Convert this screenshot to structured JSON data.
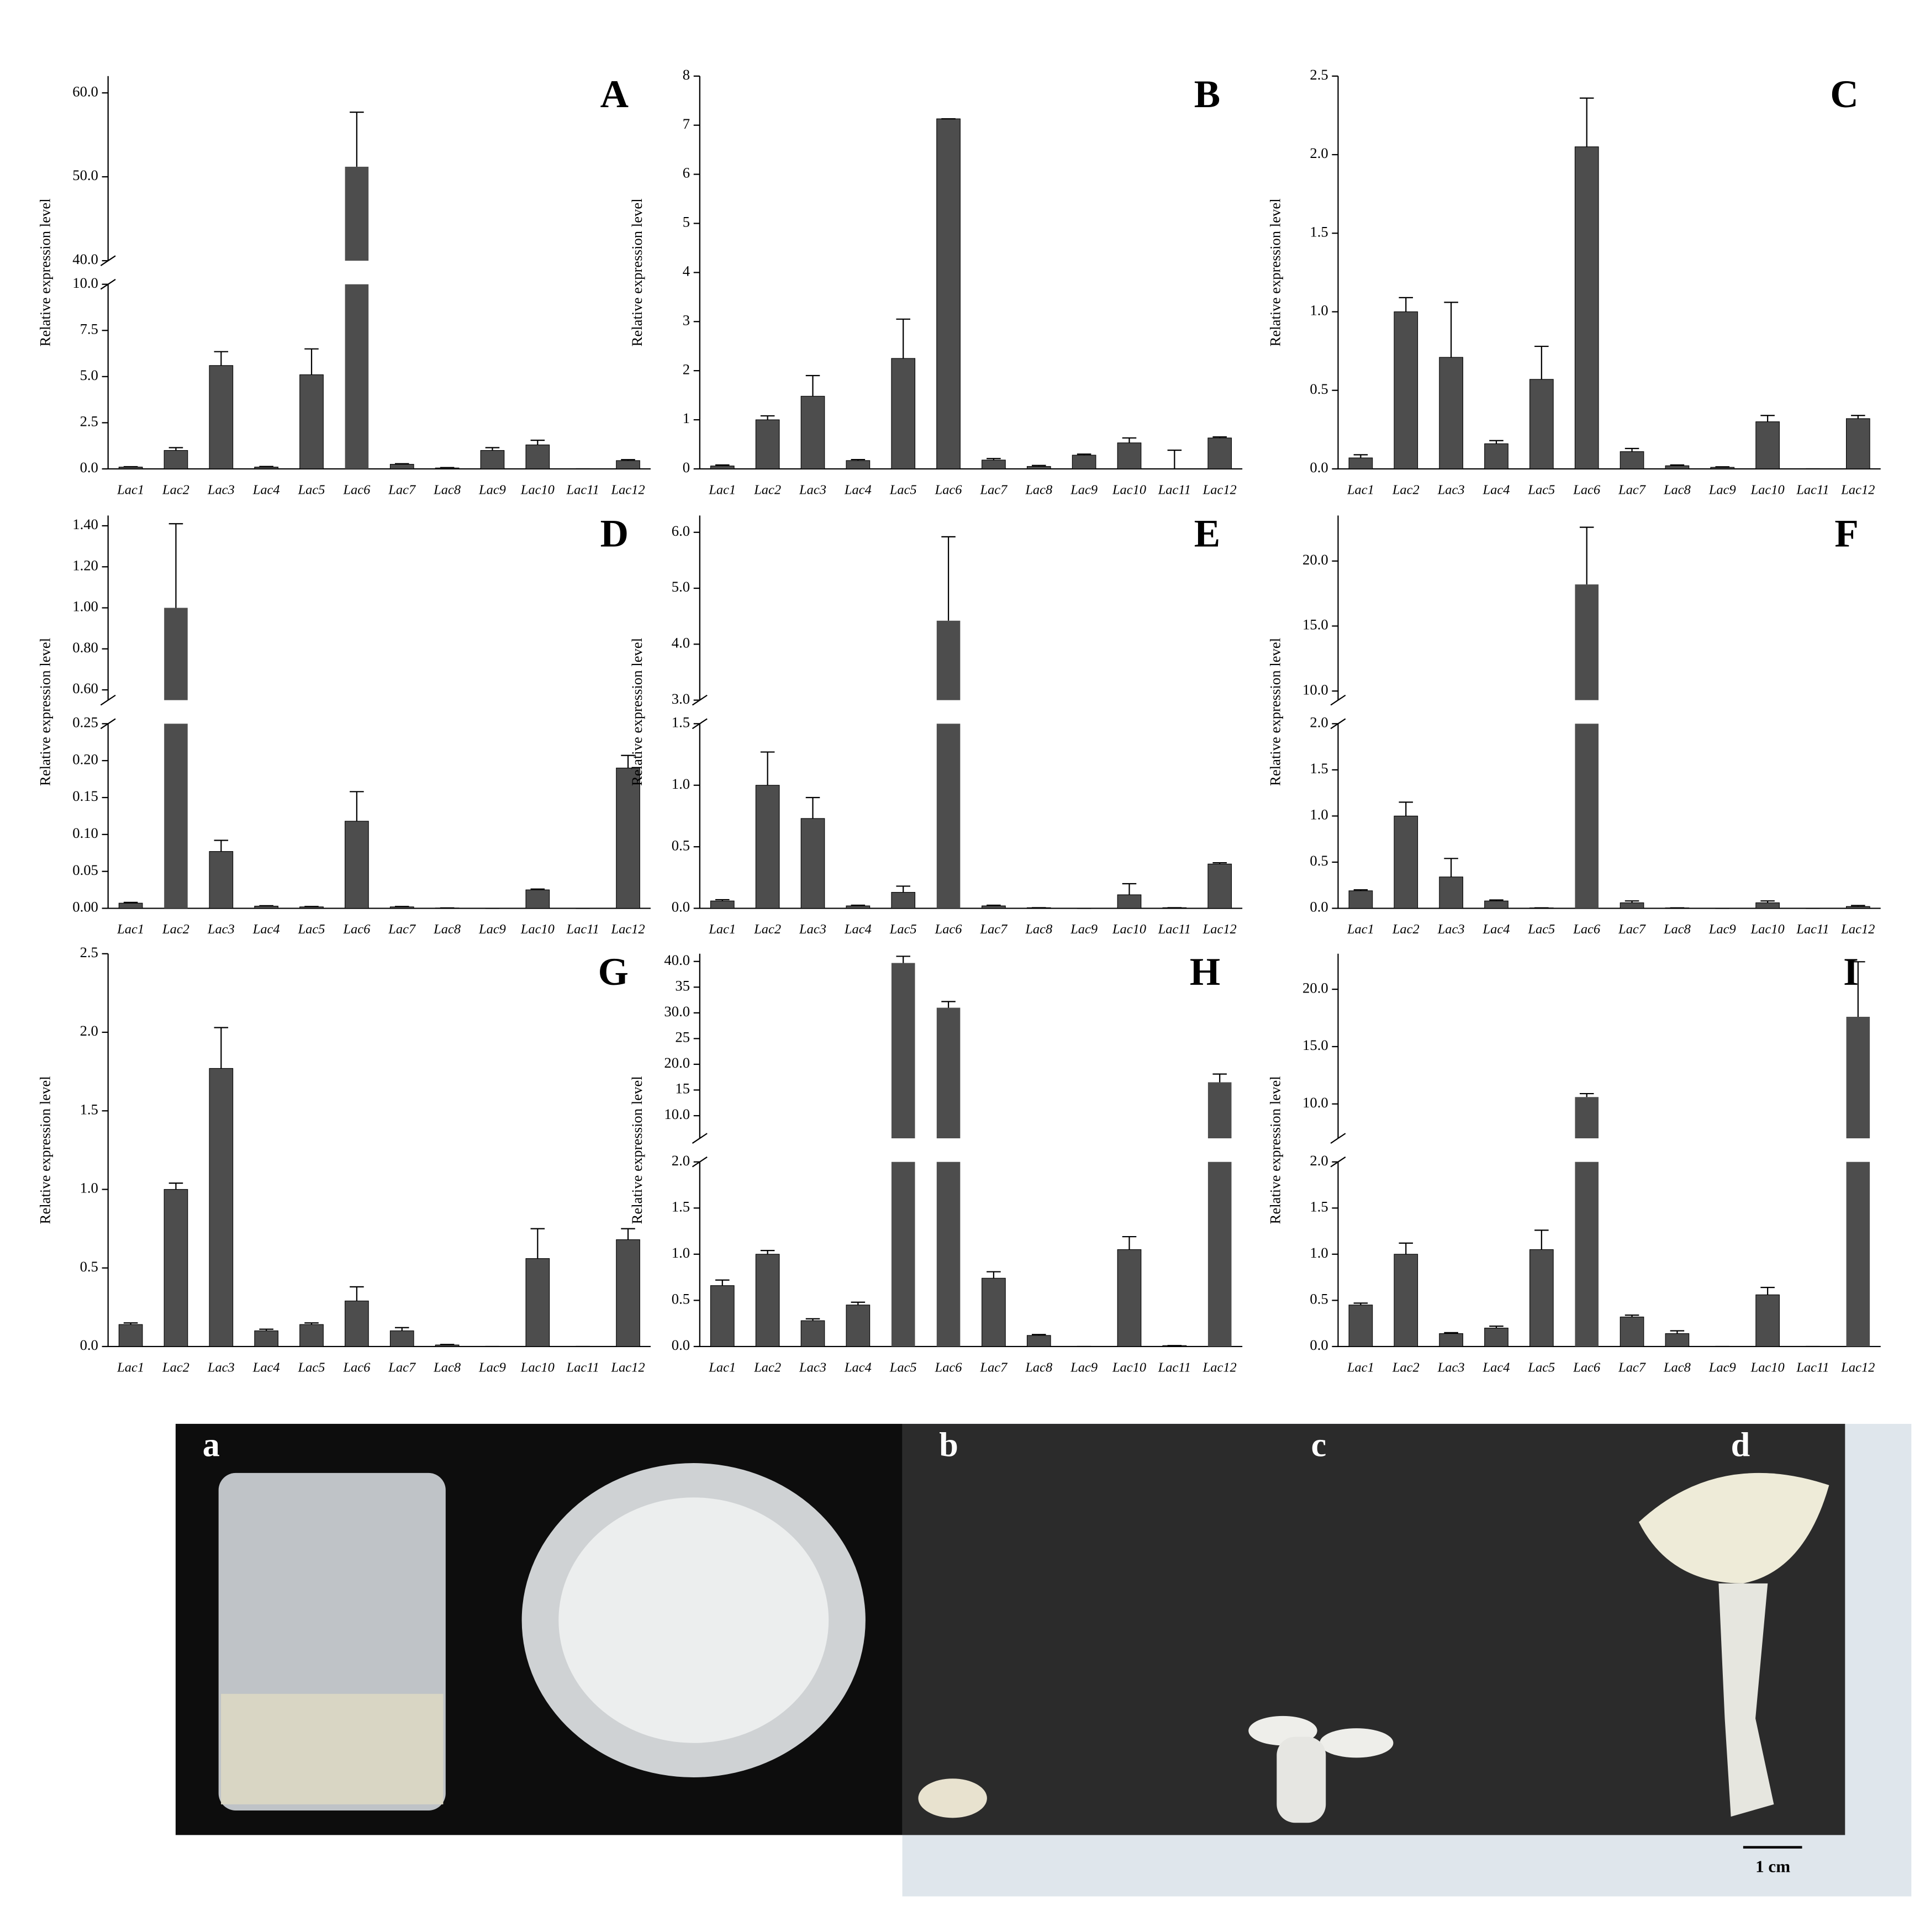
{
  "chart_data": [
    {
      "type": "bar",
      "panel": "A",
      "y_label": "Relative expression level",
      "color": "#4d4d4d",
      "categories": [
        "Lac1",
        "Lac2",
        "Lac3",
        "Lac4",
        "Lac5",
        "Lac6",
        "Lac7",
        "Lac8",
        "Lac9",
        "Lac10",
        "Lac11",
        "Lac12"
      ],
      "values": [
        0.1,
        1.0,
        5.6,
        0.1,
        5.1,
        51.2,
        0.25,
        0.05,
        1.0,
        1.3,
        0,
        0.45
      ],
      "errors": [
        0.02,
        0.15,
        0.75,
        0.03,
        1.4,
        6.5,
        0.03,
        0.02,
        0.15,
        0.25,
        0,
        0.05
      ],
      "ylim": [
        0,
        62
      ],
      "y_break": [
        10,
        40
      ],
      "yticks": [
        {
          "value": 0,
          "label": "0.0"
        },
        2.5,
        {
          "value": 5,
          "label": "5.0"
        },
        7.5,
        {
          "value": 10,
          "label": "10.0"
        },
        {
          "value": 40,
          "label": "40.0"
        },
        {
          "value": 50,
          "label": "50.0"
        },
        {
          "value": 60,
          "label": "60.0"
        }
      ]
    },
    {
      "type": "bar",
      "panel": "B",
      "y_label": "Relative expression level",
      "color": "#4d4d4d",
      "categories": [
        "Lac1",
        "Lac2",
        "Lac3",
        "Lac4",
        "Lac5",
        "Lac6",
        "Lac7",
        "Lac8",
        "Lac9",
        "Lac10",
        "Lac11",
        "Lac12"
      ],
      "values": [
        0.06,
        1.0,
        1.48,
        0.17,
        2.25,
        7.13,
        0.18,
        0.05,
        0.28,
        0.53,
        0,
        0.63
      ],
      "errors": [
        0.02,
        0.08,
        0.42,
        0.02,
        0.8,
        0,
        0.03,
        0.02,
        0.02,
        0.1,
        0.38,
        0.02
      ],
      "ylim": [
        0,
        8
      ],
      "yticks": [
        0,
        1,
        2,
        3,
        4,
        5,
        6,
        7,
        8
      ]
    },
    {
      "type": "bar",
      "panel": "C",
      "y_label": "Relative expression level",
      "color": "#4d4d4d",
      "categories": [
        "Lac1",
        "Lac2",
        "Lac3",
        "Lac4",
        "Lac5",
        "Lac6",
        "Lac7",
        "Lac8",
        "Lac9",
        "Lac10",
        "Lac11",
        "Lac12"
      ],
      "values": [
        0.07,
        1.0,
        0.71,
        0.16,
        0.57,
        2.05,
        0.11,
        0.02,
        0.01,
        0.3,
        0,
        0.32
      ],
      "errors": [
        0.02,
        0.09,
        0.35,
        0.02,
        0.21,
        0.31,
        0.02,
        0.005,
        0.003,
        0.04,
        0,
        0.02
      ],
      "ylim": [
        0,
        2.5
      ],
      "yticks": [
        {
          "value": 0,
          "label": "0.0"
        },
        0.5,
        {
          "value": 1,
          "label": "1.0"
        },
        1.5,
        {
          "value": 2,
          "label": "2.0"
        },
        2.5
      ]
    },
    {
      "type": "bar",
      "panel": "D",
      "y_label": "Relative expression level",
      "color": "#4d4d4d",
      "categories": [
        "Lac1",
        "Lac2",
        "Lac3",
        "Lac4",
        "Lac5",
        "Lac6",
        "Lac7",
        "Lac8",
        "Lac9",
        "Lac10",
        "Lac11",
        "Lac12"
      ],
      "values": [
        0.007,
        1.0,
        0.077,
        0.003,
        0.002,
        0.118,
        0.002,
        0.0005,
        0,
        0.025,
        0,
        0.19
      ],
      "errors": [
        0.001,
        0.41,
        0.015,
        0.0005,
        0.0005,
        0.04,
        0.0005,
        0,
        0,
        0.001,
        0,
        0.017
      ],
      "ylim": [
        0,
        1.45
      ],
      "y_break": [
        0.25,
        0.55
      ],
      "yticks": [
        {
          "value": 0,
          "label": "0.00"
        },
        0.05,
        {
          "value": 0.1,
          "label": "0.10"
        },
        0.15,
        {
          "value": 0.2,
          "label": "0.20"
        },
        0.25,
        {
          "value": 0.6,
          "label": "0.60"
        },
        {
          "value": 0.8,
          "label": "0.80"
        },
        {
          "value": 1,
          "label": "1.00"
        },
        {
          "value": 1.2,
          "label": "1.20"
        },
        {
          "value": 1.4,
          "label": "1.40"
        }
      ]
    },
    {
      "type": "bar",
      "panel": "E",
      "y_label": "Relative expression level",
      "color": "#4d4d4d",
      "categories": [
        "Lac1",
        "Lac2",
        "Lac3",
        "Lac4",
        "Lac5",
        "Lac6",
        "Lac7",
        "Lac8",
        "Lac9",
        "Lac10",
        "Lac11",
        "Lac12"
      ],
      "values": [
        0.06,
        1.0,
        0.73,
        0.02,
        0.13,
        4.42,
        0.02,
        0.005,
        0,
        0.11,
        0.005,
        0.36
      ],
      "errors": [
        0.01,
        0.27,
        0.17,
        0.005,
        0.05,
        1.5,
        0.005,
        0,
        0,
        0.09,
        0,
        0.01
      ],
      "ylim": [
        0,
        6.3
      ],
      "y_break": [
        1.5,
        3.0
      ],
      "yticks": [
        {
          "value": 0,
          "label": "0.0"
        },
        0.5,
        {
          "value": 1,
          "label": "1.0"
        },
        1.5,
        {
          "value": 3,
          "label": "3.0"
        },
        {
          "value": 4,
          "label": "4.0"
        },
        {
          "value": 5,
          "label": "5.0"
        },
        {
          "value": 6,
          "label": "6.0"
        }
      ]
    },
    {
      "type": "bar",
      "panel": "F",
      "y_label": "Relative expression level",
      "color": "#4d4d4d",
      "categories": [
        "Lac1",
        "Lac2",
        "Lac3",
        "Lac4",
        "Lac5",
        "Lac6",
        "Lac7",
        "Lac8",
        "Lac9",
        "Lac10",
        "Lac11",
        "Lac12"
      ],
      "values": [
        0.19,
        1.0,
        0.34,
        0.08,
        0.005,
        18.2,
        0.06,
        0.005,
        0,
        0.06,
        0,
        0.02
      ],
      "errors": [
        0.01,
        0.15,
        0.2,
        0.01,
        0,
        4.4,
        0.02,
        0,
        0,
        0.02,
        0,
        0.01
      ],
      "ylim": [
        0,
        23.5
      ],
      "y_break": [
        2.0,
        9.3
      ],
      "yticks": [
        {
          "value": 0,
          "label": "0.0"
        },
        0.5,
        {
          "value": 1,
          "label": "1.0"
        },
        1.5,
        {
          "value": 2,
          "label": "2.0"
        },
        {
          "value": 10,
          "label": "10.0"
        },
        {
          "value": 15,
          "label": "15.0"
        },
        {
          "value": 20,
          "label": "20.0"
        }
      ]
    },
    {
      "type": "bar",
      "panel": "G",
      "y_label": "Relative expression level",
      "color": "#4d4d4d",
      "categories": [
        "Lac1",
        "Lac2",
        "Lac3",
        "Lac4",
        "Lac5",
        "Lac6",
        "Lac7",
        "Lac8",
        "Lac9",
        "Lac10",
        "Lac11",
        "Lac12"
      ],
      "values": [
        0.14,
        1.0,
        1.77,
        0.1,
        0.14,
        0.29,
        0.1,
        0.01,
        0,
        0.56,
        0,
        0.68
      ],
      "errors": [
        0.01,
        0.04,
        0.26,
        0.01,
        0.01,
        0.09,
        0.02,
        0.003,
        0,
        0.19,
        0,
        0.07
      ],
      "ylim": [
        0,
        2.5
      ],
      "yticks": [
        {
          "value": 0,
          "label": "0.0"
        },
        0.5,
        {
          "value": 1,
          "label": "1.0"
        },
        1.5,
        {
          "value": 2,
          "label": "2.0"
        },
        2.5
      ]
    },
    {
      "type": "bar",
      "panel": "H",
      "y_label": "Relative expression level",
      "color": "#4d4d4d",
      "categories": [
        "Lac1",
        "Lac2",
        "Lac3",
        "Lac4",
        "Lac5",
        "Lac6",
        "Lac7",
        "Lac8",
        "Lac9",
        "Lac10",
        "Lac11",
        "Lac12"
      ],
      "values": [
        0.66,
        1.0,
        0.28,
        0.45,
        39.7,
        31.0,
        0.74,
        0.12,
        0,
        1.05,
        0.01,
        16.5
      ],
      "errors": [
        0.06,
        0.04,
        0.02,
        0.03,
        1.3,
        1.2,
        0.07,
        0.01,
        0,
        0.14,
        0,
        1.6
      ],
      "ylim": [
        0,
        41.5
      ],
      "y_break": [
        2.0,
        5.6
      ],
      "yticks": [
        {
          "value": 0,
          "label": "0.0"
        },
        0.5,
        {
          "value": 1,
          "label": "1.0"
        },
        1.5,
        {
          "value": 2,
          "label": "2.0"
        },
        {
          "value": 10,
          "label": "10.0"
        },
        15.0,
        {
          "value": 20,
          "label": "20.0"
        },
        25.0,
        {
          "value": 30,
          "label": "30.0"
        },
        35.0,
        {
          "value": 40,
          "label": "40.0"
        }
      ]
    },
    {
      "type": "bar",
      "panel": "I",
      "y_label": "Relative expression level",
      "color": "#4d4d4d",
      "categories": [
        "Lac1",
        "Lac2",
        "Lac3",
        "Lac4",
        "Lac5",
        "Lac6",
        "Lac7",
        "Lac8",
        "Lac9",
        "Lac10",
        "Lac11",
        "Lac12"
      ],
      "values": [
        0.45,
        1.0,
        0.14,
        0.2,
        1.05,
        10.6,
        0.32,
        0.14,
        0,
        0.56,
        0,
        17.6
      ],
      "errors": [
        0.02,
        0.12,
        0.01,
        0.02,
        0.21,
        0.3,
        0.02,
        0.03,
        0,
        0.08,
        0,
        4.8
      ],
      "ylim": [
        0,
        23.1
      ],
      "y_break": [
        2.0,
        7.0
      ],
      "yticks": [
        {
          "value": 0,
          "label": "0.0"
        },
        0.5,
        {
          "value": 1,
          "label": "1.0"
        },
        1.5,
        {
          "value": 2,
          "label": "2.0"
        },
        {
          "value": 10,
          "label": "10.0"
        },
        {
          "value": 15,
          "label": "15.0"
        },
        {
          "value": 20,
          "label": "20.0"
        }
      ]
    }
  ],
  "photo_panel": {
    "labels": [
      "a",
      "b",
      "c",
      "d"
    ],
    "scale_label": "1 cm"
  }
}
